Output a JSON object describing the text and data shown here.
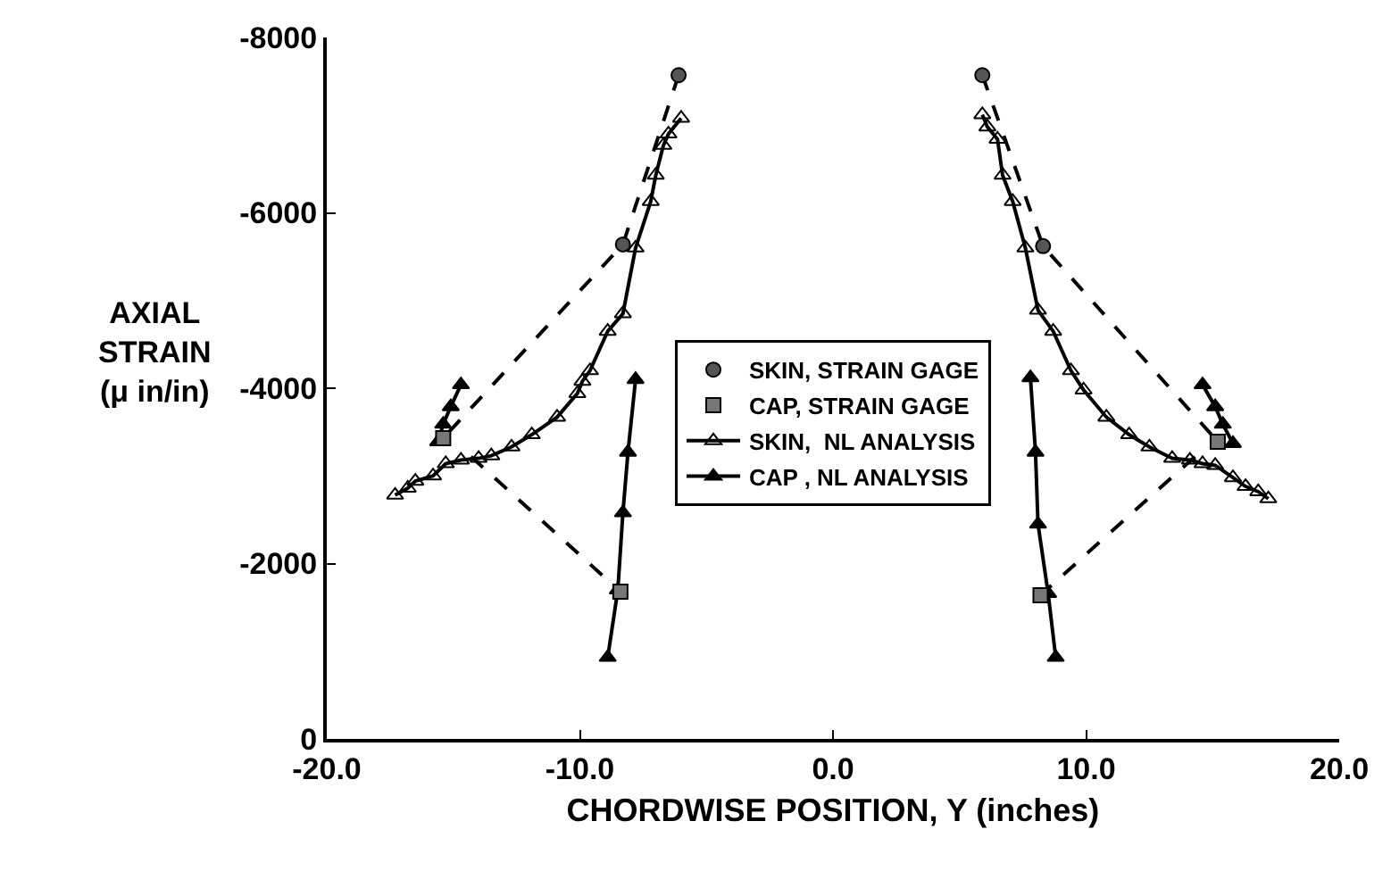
{
  "chart_data": {
    "type": "line",
    "xlabel": "CHORDWISE POSITION, Y (inches)",
    "ylabel": "AXIAL\nSTRAIN\n(μ in/in)",
    "xlim": [
      -20,
      20
    ],
    "xticks": [
      {
        "value": -20,
        "label": "-20.0"
      },
      {
        "value": -10,
        "label": "-10.0"
      },
      {
        "value": 0,
        "label": "0.0"
      },
      {
        "value": 10,
        "label": "10.0"
      },
      {
        "value": 20,
        "label": "20.0"
      }
    ],
    "ylim": [
      0,
      -8000
    ],
    "yticks": [
      0,
      -2000,
      -4000,
      -6000,
      -8000
    ],
    "grid": false,
    "legend": "center",
    "series": [
      {
        "line_style": "dashed",
        "marker": "none",
        "color": "#000000",
        "x": [
          -6.1,
          -8.3,
          -15.4,
          null,
          -14.3,
          -8.4,
          null,
          5.9,
          8.3,
          15.2,
          null,
          14.3,
          8.2
        ],
        "values": [
          -7570,
          -5640,
          -3430,
          null,
          -3220,
          -1680,
          null,
          -7570,
          -5620,
          -3390,
          null,
          -3220,
          -1640
        ]
      },
      {
        "type": "scatter",
        "marker": "circle",
        "name": "SKIN, STRAIN GAGE",
        "color": "#555555",
        "x": [
          -6.1,
          -8.3,
          5.9,
          8.3
        ],
        "values": [
          -7570,
          -5640,
          -7570,
          -5620
        ]
      },
      {
        "type": "scatter",
        "marker": "square",
        "name": "CAP, STRAIN GAGE",
        "color": "#777777",
        "x": [
          -15.4,
          -8.4,
          8.2,
          15.2
        ],
        "values": [
          -3430,
          -1680,
          -1640,
          -3390
        ]
      },
      {
        "line_style": "solid",
        "marker": "triangle-open",
        "name": "SKIN,  NL ANALYSIS",
        "color": "#000000",
        "x": [
          -6.0,
          -6.5,
          -6.7,
          -7.0,
          -7.2,
          -7.8,
          -8.3,
          -8.9,
          -9.6,
          -9.9,
          -10.1,
          -10.9,
          -11.9,
          -12.7,
          -13.5,
          -14.0,
          -14.7,
          -15.3,
          -15.8,
          -16.5,
          -16.8,
          -17.3,
          null,
          5.9,
          6.1,
          6.5,
          6.7,
          7.1,
          7.6,
          8.1,
          8.7,
          9.4,
          9.9,
          10.8,
          11.7,
          12.5,
          13.4,
          14.1,
          14.6,
          15.1,
          15.8,
          16.3,
          16.8,
          17.2
        ],
        "values": [
          -7080,
          -6900,
          -6770,
          -6430,
          -6130,
          -5600,
          -4850,
          -4650,
          -4200,
          -4080,
          -3940,
          -3670,
          -3470,
          -3330,
          -3230,
          -3200,
          -3180,
          -3140,
          -3000,
          -2940,
          -2860,
          -2780,
          null,
          -7120,
          -6980,
          -6840,
          -6430,
          -6130,
          -5600,
          -4890,
          -4650,
          -4200,
          -3980,
          -3670,
          -3470,
          -3330,
          -3200,
          -3180,
          -3140,
          -3120,
          -2980,
          -2880,
          -2820,
          -2740
        ]
      },
      {
        "line_style": "solid",
        "marker": "triangle",
        "name": "CAP , NL ANALYSIS",
        "color": "#000000",
        "x": [
          -14.7,
          -15.1,
          -15.4,
          -15.6,
          null,
          -7.8,
          -8.1,
          -8.3,
          -8.5,
          -8.9,
          null,
          7.8,
          8.0,
          8.1,
          8.5,
          8.8,
          null,
          14.6,
          15.1,
          15.4,
          15.8
        ],
        "values": [
          -4040,
          -3790,
          -3590,
          -3390,
          null,
          -4100,
          -3270,
          -2580,
          -1700,
          -930,
          null,
          -4120,
          -3270,
          -2450,
          -1660,
          -930,
          null,
          -4040,
          -3790,
          -3590,
          -3370
        ]
      }
    ]
  }
}
